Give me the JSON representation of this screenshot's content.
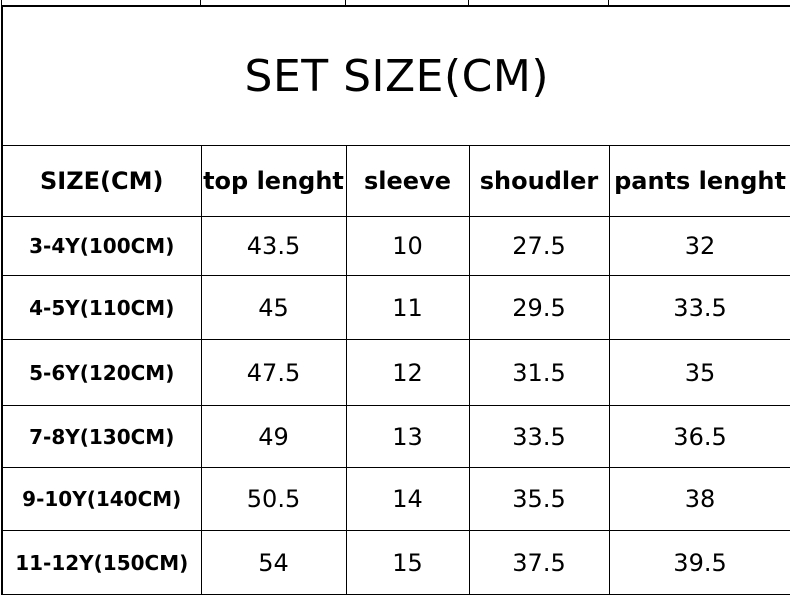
{
  "title": "SET SIZE(CM)",
  "headers": [
    "SIZE(CM)",
    "top lenght",
    "sleeve",
    "shoudler",
    "pants lenght"
  ],
  "rows": [
    [
      "3-4Y(100CM)",
      "43.5",
      "10",
      "27.5",
      "32"
    ],
    [
      "4-5Y(110CM)",
      "45",
      "11",
      "29.5",
      "33.5"
    ],
    [
      "5-6Y(120CM)",
      "47.5",
      "12",
      "31.5",
      "35"
    ],
    [
      "7-8Y(130CM)",
      "49",
      "13",
      "33.5",
      "36.5"
    ],
    [
      "9-10Y(140CM)",
      "50.5",
      "14",
      "35.5",
      "38"
    ],
    [
      "11-12Y(150CM)",
      "54",
      "15",
      "37.5",
      "39.5"
    ]
  ]
}
